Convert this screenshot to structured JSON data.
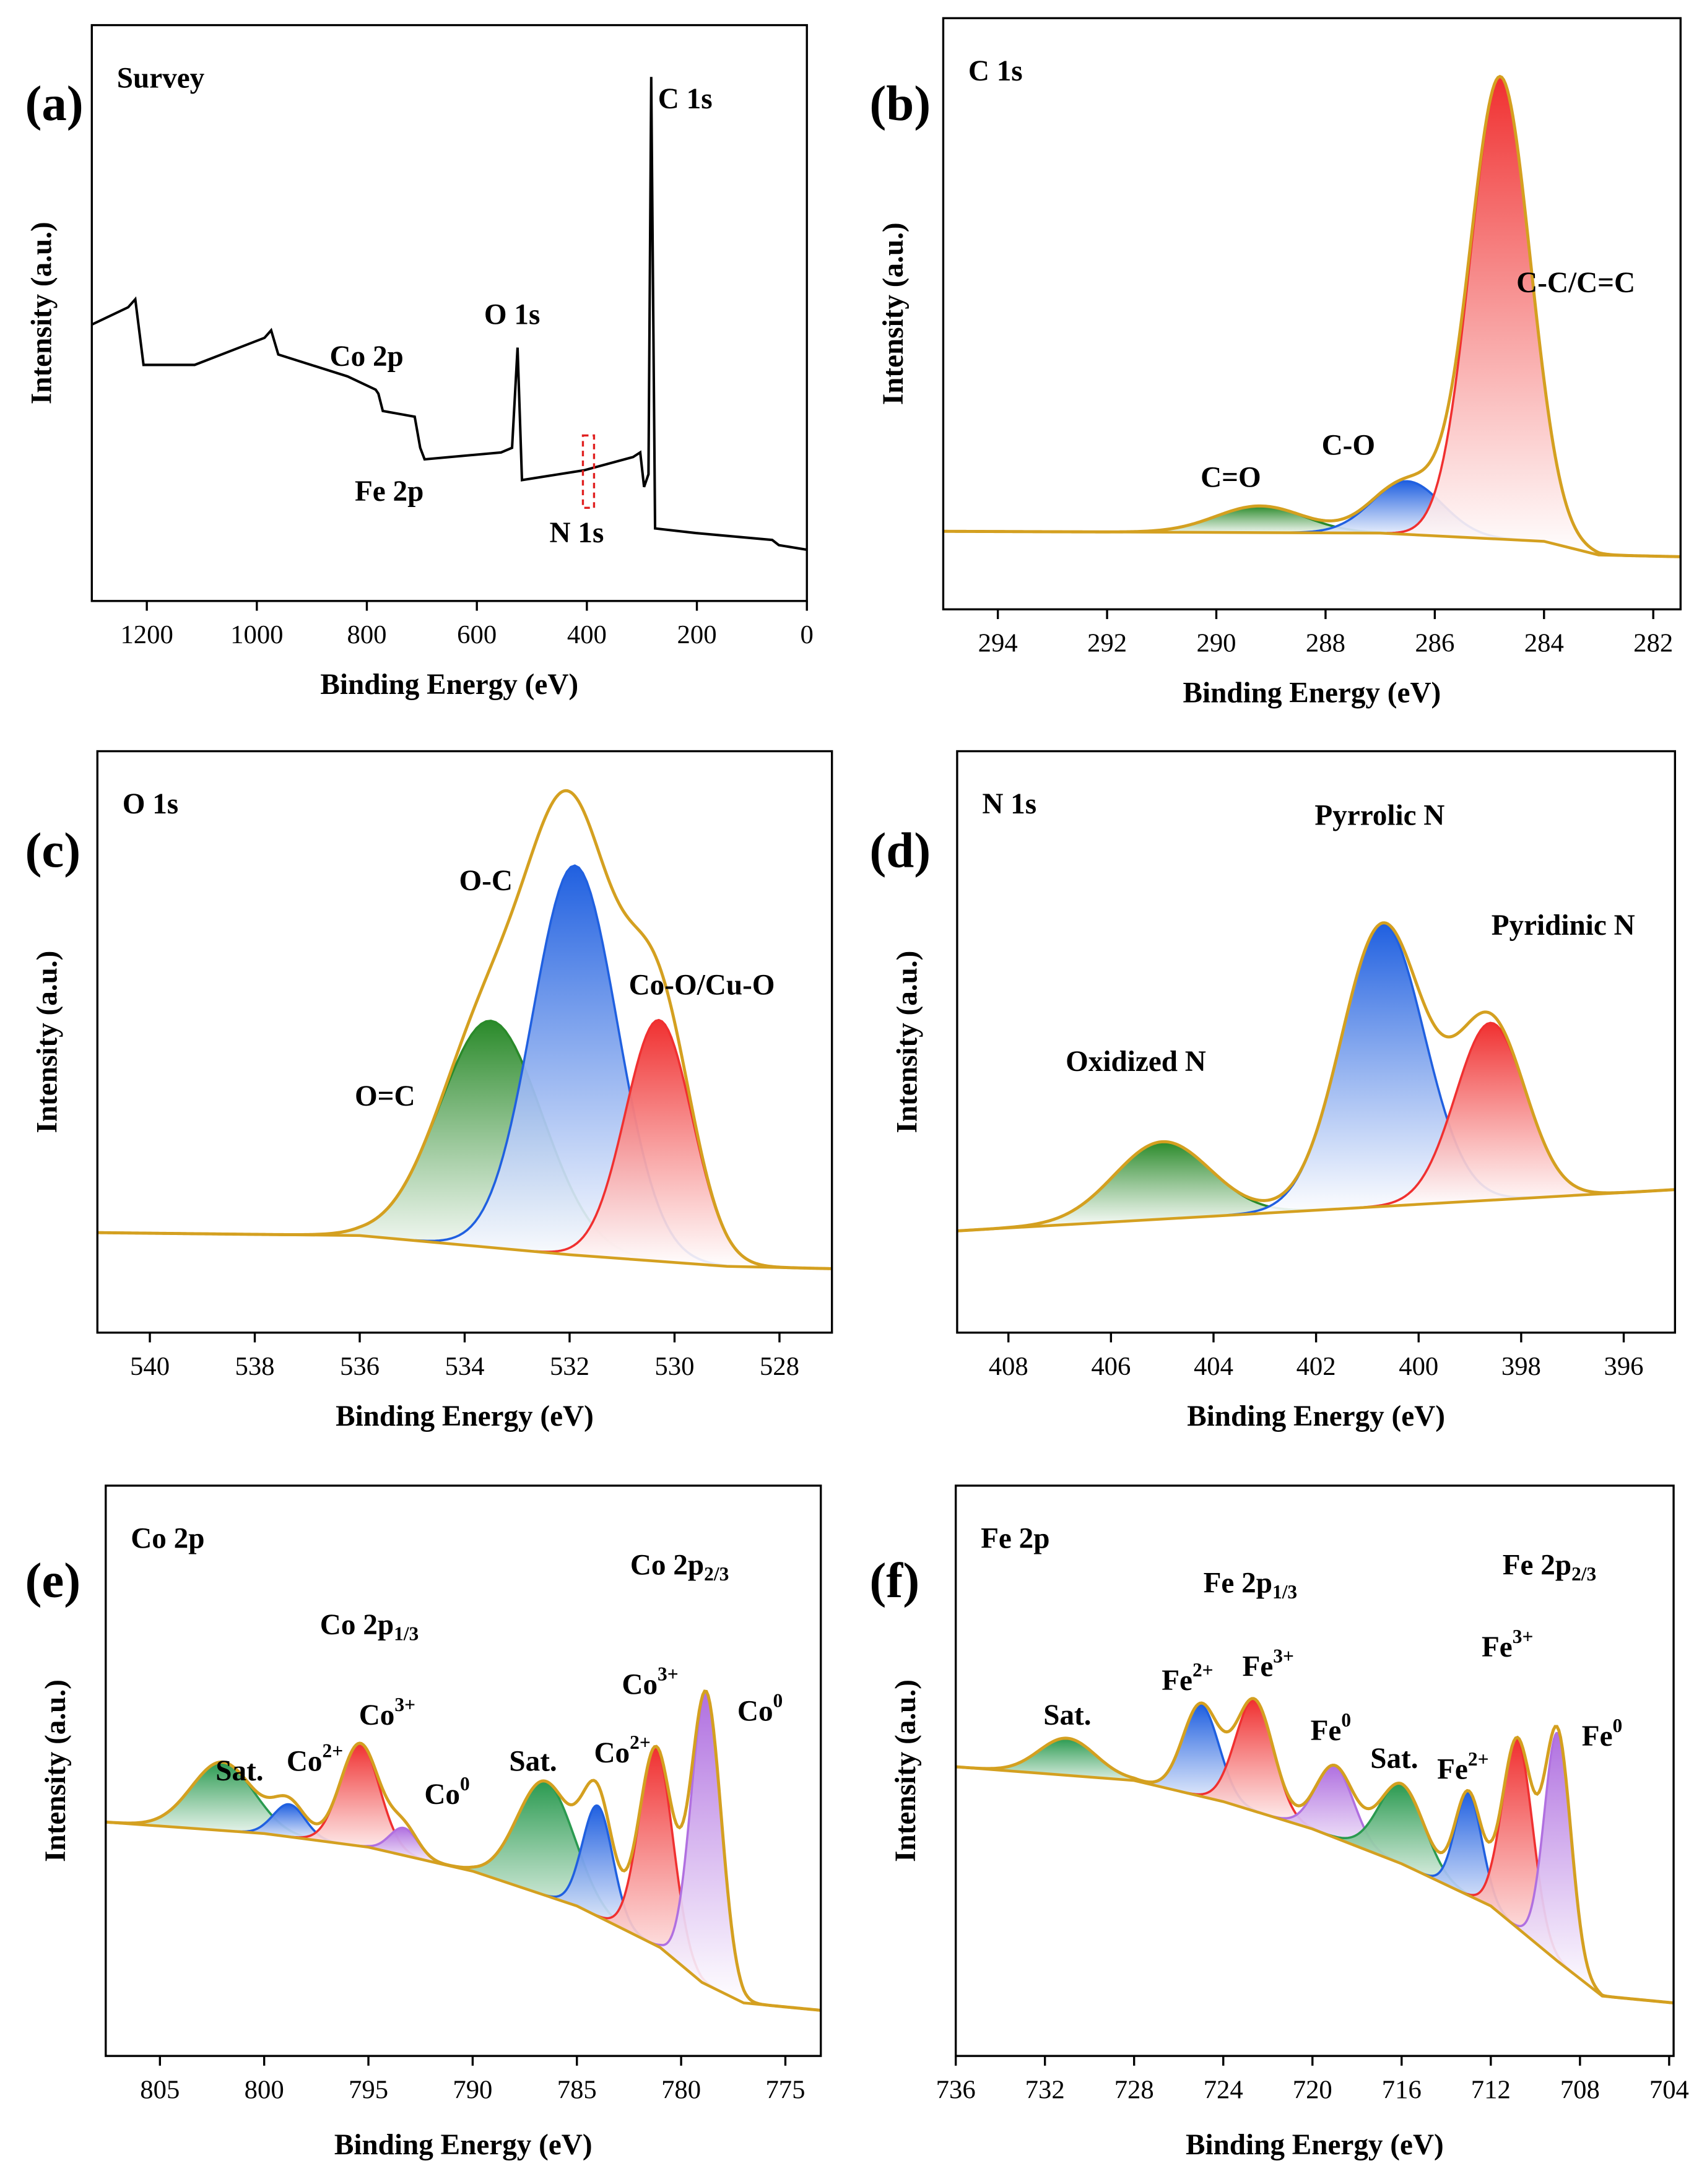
{
  "chart_data": [
    {
      "type": "line",
      "panel": "(a)",
      "title": "Survey",
      "x_label": "Binding Energy (eV)",
      "y_label": "Intensity (a.u.)",
      "xlim": [
        1300,
        0
      ],
      "ylim": [
        0,
        100
      ],
      "xticks": [
        1200,
        1000,
        800,
        600,
        400,
        200,
        0
      ],
      "color": "#000000",
      "x": [
        1300,
        1234,
        1221,
        1206,
        1113,
        986,
        974,
        961,
        835,
        784,
        779,
        771,
        713,
        703,
        695,
        556,
        536,
        526,
        518,
        405,
        316,
        303,
        296,
        288,
        283,
        276,
        202,
        63,
        51,
        0
      ],
      "values": [
        48,
        51,
        52.4,
        41,
        41,
        45.7,
        47,
        42.8,
        39,
        36.7,
        36,
        33,
        32,
        26.6,
        24.6,
        25.8,
        26.6,
        44,
        21,
        22.7,
        25,
        25.8,
        19.8,
        22,
        91,
        12.6,
        11.8,
        10.6,
        9.7,
        8.9
      ],
      "annotations": [
        {
          "text": "C 1s"
        },
        {
          "text": "O 1s"
        },
        {
          "text": "Co 2p"
        },
        {
          "text": "Fe 2p"
        },
        {
          "text": "N 1s"
        }
      ]
    },
    {
      "type": "xps",
      "panel": "(b)",
      "title": "C 1s",
      "x_label": "Binding Energy (eV)",
      "y_label": "Intensity (a.u.)",
      "xlim": [
        295,
        281.5
      ],
      "ylim": [
        0,
        100
      ],
      "xticks": [
        294,
        292,
        290,
        288,
        286,
        284,
        282
      ],
      "envelope_color": "#d4a020",
      "background": {
        "x": [
          295,
          287,
          284,
          283,
          281.5
        ],
        "values": [
          13.2,
          12.9,
          11.5,
          9.2,
          8.9
        ]
      },
      "peaks": [
        {
          "label": "C=O",
          "center": 289.2,
          "height": 4.5,
          "fwhm": 1.9,
          "color": "#2a8a2a"
        },
        {
          "label": "C-O",
          "center": 286.5,
          "height": 9,
          "fwhm": 1.5,
          "color": "#2060e0"
        },
        {
          "label": "C-C/C=C",
          "center": 284.8,
          "height": 78,
          "fwhm": 1.3,
          "color": "#f03030"
        }
      ]
    },
    {
      "type": "xps",
      "panel": "(c)",
      "title": "O 1s",
      "x_label": "Binding Energy (eV)",
      "y_label": "Intensity (a.u.)",
      "xlim": [
        541,
        527
      ],
      "ylim": [
        0,
        100
      ],
      "xticks": [
        540,
        538,
        536,
        534,
        532,
        530,
        528
      ],
      "envelope_color": "#d4a020",
      "background": {
        "x": [
          541,
          536,
          532,
          529,
          527
        ],
        "values": [
          17.2,
          16.7,
          13.4,
          11.4,
          11
        ]
      },
      "peaks": [
        {
          "label": "O=C",
          "center": 533.5,
          "height": 39,
          "fwhm": 2.3,
          "color": "#2a8a2a"
        },
        {
          "label": "O-C",
          "center": 531.9,
          "height": 67,
          "fwhm": 1.9,
          "color": "#2060e0"
        },
        {
          "label": "Co-O/Cu-O",
          "center": 530.3,
          "height": 41.5,
          "fwhm": 1.5,
          "color": "#f03030"
        }
      ]
    },
    {
      "type": "xps",
      "panel": "(d)",
      "title": "N 1s",
      "x_label": "Binding Energy (eV)",
      "y_label": "Intensity (a.u.)",
      "xlim": [
        409,
        395
      ],
      "ylim": [
        0,
        100
      ],
      "xticks": [
        408,
        406,
        404,
        402,
        400,
        398,
        396
      ],
      "envelope_color": "#d4a020",
      "background": {
        "x": [
          409,
          395
        ],
        "values": [
          17.5,
          24.6
        ]
      },
      "peaks": [
        {
          "label": "Oxidized N",
          "center": 405,
          "height": 13.3,
          "fwhm": 2.2,
          "color": "#2a8a2a"
        },
        {
          "label": "Pyrrolic N",
          "center": 400.7,
          "height": 48.5,
          "fwhm": 1.9,
          "color": "#2060e0"
        },
        {
          "label": "Pyridinic N",
          "center": 398.6,
          "height": 30.5,
          "fwhm": 1.6,
          "color": "#f03030"
        }
      ]
    },
    {
      "type": "xps",
      "panel": "(e)",
      "title": "Co 2p",
      "x_label": "Binding Energy (eV)",
      "y_label": "Intensity (a.u.)",
      "xlim": [
        807.6,
        773.3
      ],
      "ylim": [
        0,
        100
      ],
      "xticks": [
        805,
        800,
        795,
        790,
        785,
        780,
        775
      ],
      "envelope_color": "#d4a020",
      "background": {
        "x": [
          807.6,
          800,
          795,
          790,
          785,
          781,
          779,
          777,
          773.3
        ],
        "values": [
          41,
          39,
          36.6,
          32.4,
          26.3,
          19,
          12.9,
          9.3,
          8
        ]
      },
      "annotations": [
        {
          "text": "Co 2p",
          "sub": "1/3"
        },
        {
          "text": "Co 2p",
          "sub": "2/3"
        }
      ],
      "peaks": [
        {
          "label": "Sat.",
          "center": 802,
          "height": 12,
          "fwhm": 3.5,
          "color": "#2a9a50"
        },
        {
          "label": "Co",
          "label_sup": "2+",
          "center": 798.8,
          "height": 5.7,
          "fwhm": 1.8,
          "color": "#2060e0"
        },
        {
          "label": "Co",
          "label_sup": "3+",
          "center": 795.4,
          "height": 18,
          "fwhm": 2.2,
          "color": "#f03030"
        },
        {
          "label": "Co",
          "label_sup": "0",
          "center": 793.3,
          "height": 4.8,
          "fwhm": 1.6,
          "color": "#b070e0"
        },
        {
          "label": "Sat.",
          "center": 786.5,
          "height": 20,
          "fwhm": 3.2,
          "color": "#2a9a50"
        },
        {
          "label": "Co",
          "label_sup": "2+",
          "center": 784,
          "height": 19.4,
          "fwhm": 1.7,
          "color": "#2060e0"
        },
        {
          "label": "Co",
          "label_sup": "3+",
          "center": 781.2,
          "height": 34.7,
          "fwhm": 1.9,
          "color": "#f03030"
        },
        {
          "label": "Co",
          "label_sup": "0",
          "center": 778.8,
          "height": 51,
          "fwhm": 1.7,
          "color": "#b070e0"
        }
      ]
    },
    {
      "type": "xps",
      "panel": "(f)",
      "title": "Fe 2p",
      "x_label": "Binding Energy (eV)",
      "y_label": "Intensity (a.u.)",
      "xlim": [
        736,
        703.8
      ],
      "ylim": [
        0,
        100
      ],
      "xticks": [
        736,
        732,
        728,
        724,
        720,
        716,
        712,
        708,
        704
      ],
      "envelope_color": "#d4a020",
      "background": {
        "x": [
          736,
          728,
          724,
          720,
          716,
          712,
          709,
          707,
          703.8
        ],
        "values": [
          50.7,
          48.3,
          44.6,
          39.8,
          33.7,
          26.3,
          16.6,
          10.5,
          9.3
        ]
      },
      "annotations": [
        {
          "text": "Fe 2p",
          "sub": "1/3"
        },
        {
          "text": "Fe 2p",
          "sub": "2/3"
        }
      ],
      "peaks": [
        {
          "label": "Sat.",
          "center": 731,
          "height": 6.5,
          "fwhm": 3,
          "color": "#2a9a50"
        },
        {
          "label": "Fe",
          "label_sup": "2+",
          "center": 725,
          "height": 16,
          "fwhm": 1.9,
          "color": "#2060e0"
        },
        {
          "label": "Fe",
          "label_sup": "3+",
          "center": 722.6,
          "height": 19.5,
          "fwhm": 2,
          "color": "#f03030"
        },
        {
          "label": "Fe",
          "label_sup": "0",
          "center": 719,
          "height": 12.5,
          "fwhm": 2,
          "color": "#b070e0"
        },
        {
          "label": "Sat.",
          "center": 716,
          "height": 14,
          "fwhm": 2.4,
          "color": "#2a9a50"
        },
        {
          "label": "Fe",
          "label_sup": "2+",
          "center": 713,
          "height": 18,
          "fwhm": 1.4,
          "color": "#2060e0"
        },
        {
          "label": "Fe",
          "label_sup": "3+",
          "center": 710.8,
          "height": 33,
          "fwhm": 1.6,
          "color": "#f03030"
        },
        {
          "label": "Fe",
          "label_sup": "0",
          "center": 709,
          "height": 40,
          "fwhm": 1.4,
          "color": "#b070e0"
        }
      ]
    }
  ]
}
